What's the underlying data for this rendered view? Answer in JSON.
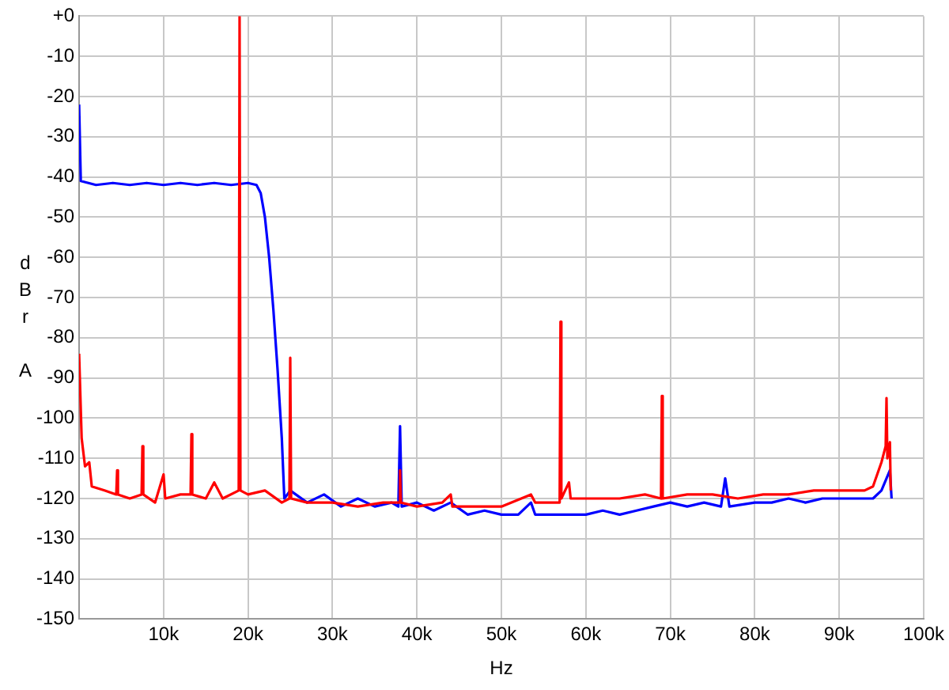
{
  "chart_data": {
    "type": "line",
    "xlabel": "Hz",
    "ylabel": "dBr A",
    "xlim": [
      0,
      100000
    ],
    "ylim": [
      -150,
      0
    ],
    "xticks": [
      {
        "value": 0,
        "label": null
      },
      {
        "value": 10000,
        "label": "10k"
      },
      {
        "value": 20000,
        "label": "20k"
      },
      {
        "value": 30000,
        "label": "30k"
      },
      {
        "value": 40000,
        "label": "40k"
      },
      {
        "value": 50000,
        "label": "50k"
      },
      {
        "value": 60000,
        "label": "60k"
      },
      {
        "value": 70000,
        "label": "70k"
      },
      {
        "value": 80000,
        "label": "80k"
      },
      {
        "value": 90000,
        "label": "90k"
      },
      {
        "value": 100000,
        "label": "100k"
      }
    ],
    "yticks": [
      {
        "value": 0,
        "label": "+0"
      },
      -10,
      -20,
      -30,
      -40,
      -50,
      -60,
      -70,
      -80,
      -90,
      -100,
      -110,
      -120,
      -130,
      -140,
      -150
    ],
    "grid": true,
    "marker": "none",
    "line_style": "solid",
    "series": [
      {
        "color": "#0000ff",
        "x": [
          0,
          200,
          2000,
          4000,
          6000,
          8000,
          10000,
          12000,
          14000,
          16000,
          18000,
          20000,
          21000,
          21500,
          22000,
          22500,
          23000,
          23500,
          24000,
          24300,
          25000,
          27000,
          29000,
          31000,
          33000,
          35000,
          37000,
          37800,
          38000,
          38200,
          40000,
          42000,
          44000,
          46000,
          48000,
          50000,
          52000,
          53500,
          54000,
          56000,
          58000,
          60000,
          62000,
          64000,
          66000,
          68000,
          70000,
          72000,
          74000,
          76000,
          76500,
          77000,
          80000,
          82000,
          84000,
          86000,
          88000,
          90000,
          92000,
          94000,
          95000,
          96000,
          96200
        ],
        "values": [
          -22,
          -41,
          -42,
          -41.5,
          -42,
          -41.5,
          -42,
          -41.5,
          -42,
          -41.5,
          -42,
          -41.5,
          -42,
          -44,
          -50,
          -60,
          -73,
          -88,
          -105,
          -120,
          -118,
          -121,
          -119,
          -122,
          -120,
          -122,
          -121,
          -122,
          -102,
          -122,
          -121,
          -123,
          -121,
          -124,
          -123,
          -124,
          -124,
          -121,
          -124,
          -124,
          -124,
          -124,
          -123,
          -124,
          -123,
          -122,
          -121,
          -122,
          -121,
          -122,
          -115,
          -122,
          -121,
          -121,
          -120,
          -121,
          -120,
          -120,
          -120,
          -120,
          -118,
          -113,
          -120
        ]
      },
      {
        "color": "#ff0000",
        "x": [
          0,
          300,
          700,
          1200,
          1500,
          3000,
          4400,
          4500,
          4600,
          6000,
          7400,
          7500,
          7600,
          9000,
          10000,
          10200,
          12000,
          13200,
          13300,
          13400,
          15000,
          16000,
          17000,
          18900,
          19000,
          19100,
          20000,
          22000,
          24000,
          24900,
          25000,
          25100,
          27000,
          30000,
          33000,
          36000,
          37900,
          38000,
          38100,
          40000,
          43000,
          44000,
          44200,
          47000,
          50000,
          53500,
          54000,
          56900,
          57000,
          57100,
          58000,
          58200,
          61000,
          64000,
          67000,
          68900,
          69000,
          69100,
          72000,
          75000,
          78000,
          81000,
          84000,
          87000,
          90000,
          93000,
          94000,
          95000,
          95500,
          95600,
          95700,
          96000,
          96100
        ],
        "values": [
          -84,
          -105,
          -112,
          -111,
          -117,
          -118,
          -119,
          -113,
          -119,
          -120,
          -119,
          -107,
          -119,
          -121,
          -114,
          -120,
          -119,
          -119,
          -104,
          -119,
          -120,
          -116,
          -120,
          -118,
          0,
          -118,
          -119,
          -118,
          -121,
          -120,
          -85,
          -120,
          -121,
          -121,
          -122,
          -121,
          -121,
          -113,
          -121,
          -122,
          -121,
          -119,
          -122,
          -122,
          -122,
          -119,
          -121,
          -121,
          -76,
          -120,
          -116,
          -120,
          -120,
          -120,
          -119,
          -120,
          -94.5,
          -120,
          -119,
          -119,
          -120,
          -119,
          -119,
          -118,
          -118,
          -118,
          -117,
          -111,
          -107,
          -95,
          -110,
          -106,
          -118
        ]
      }
    ]
  }
}
